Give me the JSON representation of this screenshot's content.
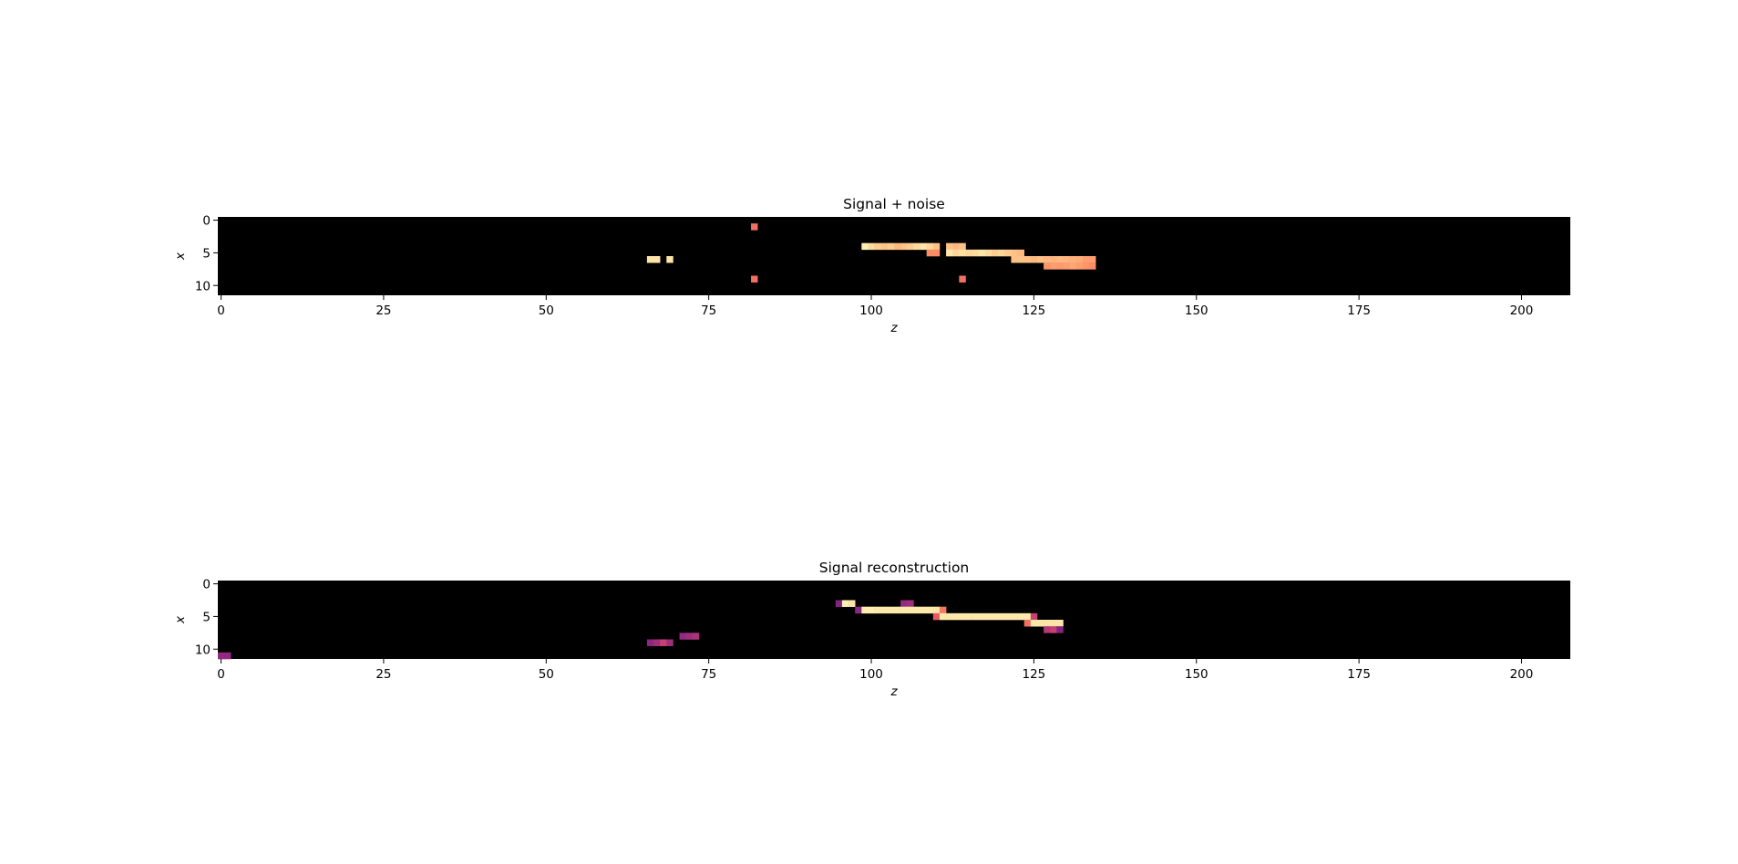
{
  "chart_data": [
    {
      "type": "heatmap",
      "title": "Signal + noise",
      "xlabel": "z",
      "ylabel": "x",
      "xlim": [
        -0.5,
        207.5
      ],
      "ylim": [
        11.5,
        -0.5
      ],
      "xticks": [
        0,
        25,
        50,
        75,
        100,
        125,
        150,
        175,
        200
      ],
      "yticks": [
        0,
        5,
        10
      ],
      "background": "#000000",
      "cells": [
        {
          "z": 82,
          "x": 1,
          "v": 0.7
        },
        {
          "z": 66,
          "x": 6,
          "v": 0.95
        },
        {
          "z": 67,
          "x": 6,
          "v": 0.95
        },
        {
          "z": 69,
          "x": 6,
          "v": 0.95
        },
        {
          "z": 82,
          "x": 9,
          "v": 0.7
        },
        {
          "z": 114,
          "x": 9,
          "v": 0.7
        },
        {
          "z": 99,
          "x": 4,
          "v": 0.97
        },
        {
          "z": 100,
          "x": 4,
          "v": 0.93
        },
        {
          "z": 101,
          "x": 4,
          "v": 0.9
        },
        {
          "z": 102,
          "x": 4,
          "v": 0.88
        },
        {
          "z": 103,
          "x": 4,
          "v": 0.9
        },
        {
          "z": 104,
          "x": 4,
          "v": 0.86
        },
        {
          "z": 105,
          "x": 4,
          "v": 0.88
        },
        {
          "z": 106,
          "x": 4,
          "v": 0.9
        },
        {
          "z": 107,
          "x": 4,
          "v": 0.93
        },
        {
          "z": 108,
          "x": 4,
          "v": 0.95
        },
        {
          "z": 109,
          "x": 4,
          "v": 0.92
        },
        {
          "z": 110,
          "x": 4,
          "v": 0.88
        },
        {
          "z": 112,
          "x": 4,
          "v": 0.88
        },
        {
          "z": 113,
          "x": 4,
          "v": 0.86
        },
        {
          "z": 114,
          "x": 4,
          "v": 0.88
        },
        {
          "z": 109,
          "x": 5,
          "v": 0.76
        },
        {
          "z": 110,
          "x": 5,
          "v": 0.76
        },
        {
          "z": 112,
          "x": 5,
          "v": 0.95
        },
        {
          "z": 113,
          "x": 5,
          "v": 0.92
        },
        {
          "z": 114,
          "x": 5,
          "v": 0.94
        },
        {
          "z": 115,
          "x": 5,
          "v": 0.92
        },
        {
          "z": 116,
          "x": 5,
          "v": 0.93
        },
        {
          "z": 117,
          "x": 5,
          "v": 0.95
        },
        {
          "z": 118,
          "x": 5,
          "v": 0.93
        },
        {
          "z": 119,
          "x": 5,
          "v": 0.9
        },
        {
          "z": 120,
          "x": 5,
          "v": 0.92
        },
        {
          "z": 121,
          "x": 5,
          "v": 0.9
        },
        {
          "z": 122,
          "x": 5,
          "v": 0.88
        },
        {
          "z": 123,
          "x": 5,
          "v": 0.86
        },
        {
          "z": 122,
          "x": 6,
          "v": 0.88
        },
        {
          "z": 123,
          "x": 6,
          "v": 0.88
        },
        {
          "z": 124,
          "x": 6,
          "v": 0.88
        },
        {
          "z": 125,
          "x": 6,
          "v": 0.86
        },
        {
          "z": 126,
          "x": 6,
          "v": 0.88
        },
        {
          "z": 127,
          "x": 6,
          "v": 0.86
        },
        {
          "z": 128,
          "x": 6,
          "v": 0.85
        },
        {
          "z": 129,
          "x": 6,
          "v": 0.86
        },
        {
          "z": 130,
          "x": 6,
          "v": 0.85
        },
        {
          "z": 131,
          "x": 6,
          "v": 0.84
        },
        {
          "z": 132,
          "x": 6,
          "v": 0.83
        },
        {
          "z": 133,
          "x": 6,
          "v": 0.8
        },
        {
          "z": 134,
          "x": 6,
          "v": 0.8
        },
        {
          "z": 127,
          "x": 7,
          "v": 0.78
        },
        {
          "z": 128,
          "x": 7,
          "v": 0.8
        },
        {
          "z": 129,
          "x": 7,
          "v": 0.79
        },
        {
          "z": 130,
          "x": 7,
          "v": 0.8
        },
        {
          "z": 131,
          "x": 7,
          "v": 0.82
        },
        {
          "z": 132,
          "x": 7,
          "v": 0.8
        },
        {
          "z": 133,
          "x": 7,
          "v": 0.78
        },
        {
          "z": 134,
          "x": 7,
          "v": 0.76
        }
      ]
    },
    {
      "type": "heatmap",
      "title": "Signal reconstruction",
      "xlabel": "z",
      "ylabel": "x",
      "xlim": [
        -0.5,
        207.5
      ],
      "ylim": [
        11.5,
        -0.5
      ],
      "xticks": [
        0,
        25,
        50,
        75,
        100,
        125,
        150,
        175,
        200
      ],
      "yticks": [
        0,
        5,
        10
      ],
      "background": "#000000",
      "cells": [
        {
          "z": 0,
          "x": 11,
          "v": 0.42
        },
        {
          "z": 1,
          "x": 11,
          "v": 0.42
        },
        {
          "z": 95,
          "x": 3,
          "v": 0.38
        },
        {
          "z": 96,
          "x": 3,
          "v": 0.97
        },
        {
          "z": 97,
          "x": 3,
          "v": 0.95
        },
        {
          "z": 105,
          "x": 3,
          "v": 0.42
        },
        {
          "z": 106,
          "x": 3,
          "v": 0.44
        },
        {
          "z": 98,
          "x": 4,
          "v": 0.4
        },
        {
          "z": 99,
          "x": 4,
          "v": 0.97
        },
        {
          "z": 100,
          "x": 4,
          "v": 0.97
        },
        {
          "z": 101,
          "x": 4,
          "v": 0.96
        },
        {
          "z": 102,
          "x": 4,
          "v": 0.96
        },
        {
          "z": 103,
          "x": 4,
          "v": 0.96
        },
        {
          "z": 104,
          "x": 4,
          "v": 0.96
        },
        {
          "z": 105,
          "x": 4,
          "v": 0.96
        },
        {
          "z": 106,
          "x": 4,
          "v": 0.96
        },
        {
          "z": 107,
          "x": 4,
          "v": 0.96
        },
        {
          "z": 108,
          "x": 4,
          "v": 0.96
        },
        {
          "z": 109,
          "x": 4,
          "v": 0.96
        },
        {
          "z": 110,
          "x": 4,
          "v": 0.95
        },
        {
          "z": 111,
          "x": 4,
          "v": 0.72
        },
        {
          "z": 110,
          "x": 5,
          "v": 0.65
        },
        {
          "z": 111,
          "x": 5,
          "v": 0.96
        },
        {
          "z": 112,
          "x": 5,
          "v": 0.96
        },
        {
          "z": 113,
          "x": 5,
          "v": 0.96
        },
        {
          "z": 114,
          "x": 5,
          "v": 0.96
        },
        {
          "z": 115,
          "x": 5,
          "v": 0.96
        },
        {
          "z": 116,
          "x": 5,
          "v": 0.96
        },
        {
          "z": 117,
          "x": 5,
          "v": 0.96
        },
        {
          "z": 118,
          "x": 5,
          "v": 0.96
        },
        {
          "z": 119,
          "x": 5,
          "v": 0.96
        },
        {
          "z": 120,
          "x": 5,
          "v": 0.96
        },
        {
          "z": 121,
          "x": 5,
          "v": 0.96
        },
        {
          "z": 122,
          "x": 5,
          "v": 0.96
        },
        {
          "z": 123,
          "x": 5,
          "v": 0.96
        },
        {
          "z": 124,
          "x": 5,
          "v": 0.96
        },
        {
          "z": 125,
          "x": 5,
          "v": 0.55
        },
        {
          "z": 124,
          "x": 6,
          "v": 0.7
        },
        {
          "z": 125,
          "x": 6,
          "v": 0.95
        },
        {
          "z": 126,
          "x": 6,
          "v": 0.95
        },
        {
          "z": 127,
          "x": 6,
          "v": 0.95
        },
        {
          "z": 128,
          "x": 6,
          "v": 0.95
        },
        {
          "z": 129,
          "x": 6,
          "v": 0.95
        },
        {
          "z": 127,
          "x": 7,
          "v": 0.5
        },
        {
          "z": 128,
          "x": 7,
          "v": 0.55
        },
        {
          "z": 129,
          "x": 7,
          "v": 0.38
        },
        {
          "z": 71,
          "x": 8,
          "v": 0.42
        },
        {
          "z": 72,
          "x": 8,
          "v": 0.45
        },
        {
          "z": 73,
          "x": 8,
          "v": 0.48
        },
        {
          "z": 66,
          "x": 9,
          "v": 0.4
        },
        {
          "z": 67,
          "x": 9,
          "v": 0.45
        },
        {
          "z": 68,
          "x": 9,
          "v": 0.55
        },
        {
          "z": 69,
          "x": 9,
          "v": 0.45
        }
      ]
    }
  ]
}
